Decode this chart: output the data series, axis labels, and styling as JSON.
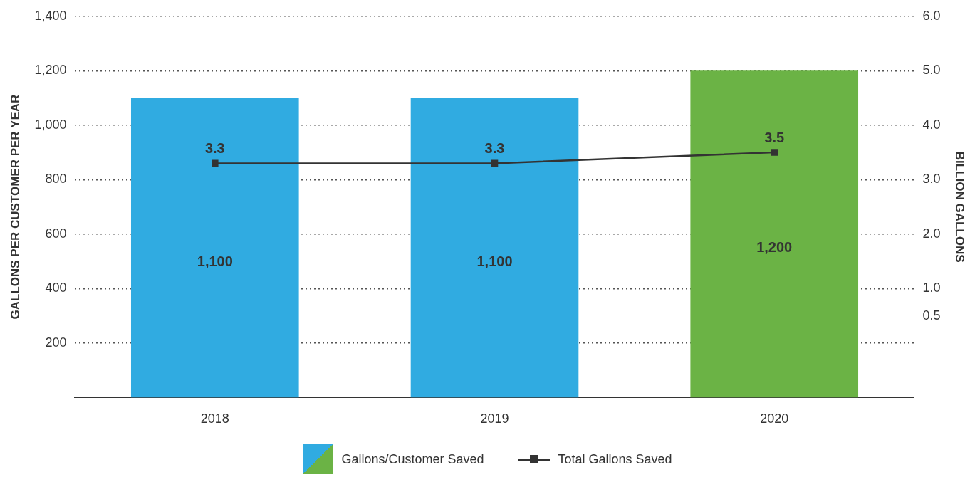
{
  "chart_data": {
    "type": "bar",
    "categories": [
      "2018",
      "2019",
      "2020"
    ],
    "ylabel": "GALLONS PER CUSTOMER PER YEAR",
    "y2label": "BILLION GALLONS",
    "ylim": [
      0,
      1400
    ],
    "yticks": [
      {
        "value": 200,
        "label": "200"
      },
      {
        "value": 400,
        "label": "400"
      },
      {
        "value": 600,
        "label": "600"
      },
      {
        "value": 800,
        "label": "800"
      },
      {
        "value": 1000,
        "label": "1,000"
      },
      {
        "value": 1200,
        "label": "1,200"
      },
      {
        "value": 1400,
        "label": "1,400"
      }
    ],
    "y2lim": [
      -1,
      6
    ],
    "y2ticks": [
      {
        "value": 0.5,
        "label": "0.5"
      },
      {
        "value": 1,
        "label": "1.0"
      },
      {
        "value": 2,
        "label": "2.0"
      },
      {
        "value": 3,
        "label": "3.0"
      },
      {
        "value": 4,
        "label": "4.0"
      },
      {
        "value": 5,
        "label": "5.0"
      },
      {
        "value": 6,
        "label": "6.0"
      }
    ],
    "grid": "y",
    "legend": "bottom",
    "series": [
      {
        "name": "Gallons/Customer Saved",
        "colors": [
          "#30abe1",
          "#30abe1",
          "#6bb345"
        ],
        "values": [
          1100,
          1100,
          1200
        ],
        "value_labels": [
          "1,100",
          "1,100",
          "1,200"
        ]
      },
      {
        "name": "Total Gallons Saved",
        "type": "line",
        "axis": "y2",
        "color": "#333333",
        "marker": "square",
        "line_style": "solid",
        "values": [
          3.3,
          3.3,
          3.5
        ],
        "value_labels": [
          "3.3",
          "3.3",
          "3.5"
        ]
      }
    ]
  }
}
